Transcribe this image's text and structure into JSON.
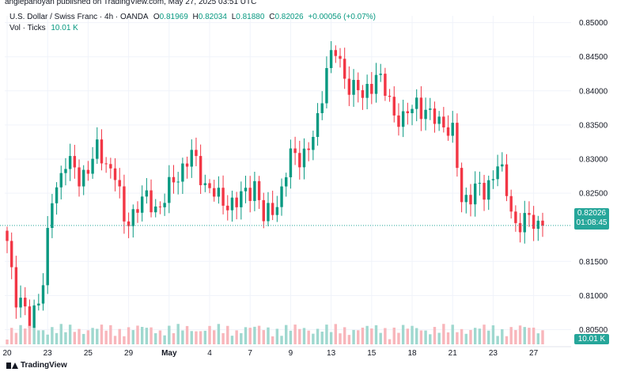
{
  "header": {
    "published_line": "anglepanoyan published on TradingView.com, May 27, 2025 03:51 UTC",
    "symbol": "U.S. Dollar / Swiss Franc · 4h · OANDA",
    "o_label": "O",
    "o_value": "0.81969",
    "h_label": "H",
    "h_value": "0.82034",
    "l_label": "L",
    "l_value": "0.81880",
    "c_label": "C",
    "c_value": "0.82026",
    "change": "+0.00056 (+0.07%)",
    "vol_label": "Vol · Ticks",
    "vol_value": "10.01 K"
  },
  "price_badge": {
    "price": "0.82026",
    "countdown": "01:08:45"
  },
  "volume_badge": "10.01 K",
  "footer": {
    "brand": "TradingView"
  },
  "colors": {
    "up": "#089981",
    "down": "#f23645",
    "price_line": "#26a69a",
    "vol_up": "#9fd8cf",
    "vol_down": "#f8b6bb"
  },
  "chart_data": {
    "type": "candlestick",
    "title": "U.S. Dollar / Swiss Franc · 4h · OANDA",
    "ylim": [
      0.8025,
      0.851
    ],
    "y_ticks": [
      "0.85000",
      "0.84500",
      "0.84000",
      "0.83500",
      "0.83000",
      "0.82500",
      "0.81500",
      "0.81000",
      "0.80500"
    ],
    "y_tick_values": [
      0.85,
      0.845,
      0.84,
      0.835,
      0.83,
      0.825,
      0.815,
      0.81,
      0.805
    ],
    "x_ticks": [
      "20",
      "23",
      "25",
      "29",
      "May",
      "4",
      "7",
      "9",
      "13",
      "15",
      "18",
      "21",
      "23",
      "27"
    ],
    "x_tick_bar_index": [
      0,
      9,
      18,
      27,
      36,
      45,
      54,
      63,
      72,
      81,
      90,
      99,
      108,
      117
    ],
    "last_close": 0.82026,
    "anchors": [
      [
        0,
        0.818
      ],
      [
        2,
        0.81
      ],
      [
        5,
        0.806
      ],
      [
        8,
        0.812
      ],
      [
        10,
        0.824
      ],
      [
        13,
        0.83
      ],
      [
        16,
        0.827
      ],
      [
        20,
        0.831
      ],
      [
        24,
        0.828
      ],
      [
        26,
        0.8205
      ],
      [
        30,
        0.824
      ],
      [
        34,
        0.823
      ],
      [
        38,
        0.828
      ],
      [
        41,
        0.8305
      ],
      [
        44,
        0.8265
      ],
      [
        47,
        0.824
      ],
      [
        51,
        0.8235
      ],
      [
        55,
        0.8265
      ],
      [
        57,
        0.821
      ],
      [
        61,
        0.825
      ],
      [
        63,
        0.8305
      ],
      [
        67,
        0.831
      ],
      [
        69,
        0.8355
      ],
      [
        71,
        0.844
      ],
      [
        73,
        0.8455
      ],
      [
        75,
        0.842
      ],
      [
        79,
        0.839
      ],
      [
        82,
        0.8425
      ],
      [
        86,
        0.837
      ],
      [
        88,
        0.8355
      ],
      [
        91,
        0.8385
      ],
      [
        94,
        0.836
      ],
      [
        97,
        0.8355
      ],
      [
        99,
        0.8335
      ],
      [
        101,
        0.824
      ],
      [
        104,
        0.8255
      ],
      [
        106,
        0.825
      ],
      [
        109,
        0.8295
      ],
      [
        111,
        0.825
      ],
      [
        113,
        0.8205
      ],
      [
        117,
        0.821
      ],
      [
        119,
        0.82026
      ]
    ],
    "bar_count": 120
  }
}
